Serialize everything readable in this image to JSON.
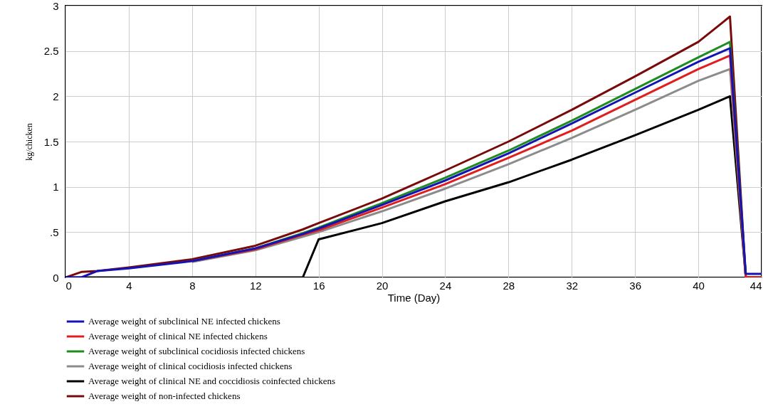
{
  "chart_data": {
    "type": "line",
    "xlabel": "Time (Day)",
    "ylabel": "kg/chicken",
    "x": [
      0,
      1,
      2,
      4,
      8,
      12,
      15,
      16,
      20,
      24,
      28,
      32,
      36,
      40,
      42,
      43,
      44
    ],
    "xlim": [
      0,
      44
    ],
    "xticks": [
      0,
      4,
      8,
      12,
      16,
      20,
      24,
      28,
      32,
      36,
      40,
      44
    ],
    "ylim": [
      0,
      3
    ],
    "yticks": [
      0,
      {
        "value": 0.5,
        "label": ".5"
      },
      1,
      1.5,
      2,
      2.5,
      3
    ],
    "grid": true,
    "legend": "bottom",
    "marker": "none",
    "line_style": "solid",
    "series": [
      {
        "name": "Average weight of subclinical NE infected chickens",
        "color": "#1414b4",
        "values": [
          0,
          0,
          0.07,
          0.1,
          0.18,
          0.32,
          0.48,
          0.54,
          0.8,
          1.07,
          1.37,
          1.7,
          2.04,
          2.38,
          2.53,
          0.04,
          0.04
        ]
      },
      {
        "name": "Average weight of clinical NE infected chickens",
        "color": "#e01e1e",
        "values": [
          null,
          null,
          null,
          null,
          0.18,
          0.31,
          0.47,
          0.52,
          0.77,
          1.03,
          1.32,
          1.62,
          1.96,
          2.3,
          2.45,
          0,
          0
        ]
      },
      {
        "name": "Average weight of subclinical cocidiosis infected chickens",
        "color": "#1e8c1e",
        "values": [
          null,
          null,
          null,
          null,
          0.18,
          0.32,
          0.49,
          0.55,
          0.82,
          1.1,
          1.4,
          1.73,
          2.08,
          2.43,
          2.6,
          0,
          0
        ]
      },
      {
        "name": "Average weight of clinical cocidiosis infected chickens",
        "color": "#8c8c8c",
        "values": [
          null,
          null,
          null,
          null,
          0.17,
          0.3,
          0.45,
          0.5,
          0.73,
          0.98,
          1.25,
          1.54,
          1.85,
          2.17,
          2.3,
          0,
          0
        ]
      },
      {
        "name": "Average weight of clinical NE and coccidiosis coinfected chickens",
        "color": "#000000",
        "values": [
          0,
          0,
          0,
          0,
          0,
          0,
          0,
          0.42,
          0.6,
          0.84,
          1.05,
          1.3,
          1.57,
          1.85,
          2,
          0,
          0
        ]
      },
      {
        "name": "Average weight of non-infected  chickens",
        "color": "#780a0a",
        "values": [
          0,
          0.06,
          0.07,
          0.11,
          0.2,
          0.35,
          0.53,
          0.6,
          0.87,
          1.18,
          1.5,
          1.85,
          2.22,
          2.6,
          2.88,
          0,
          0
        ]
      }
    ]
  }
}
